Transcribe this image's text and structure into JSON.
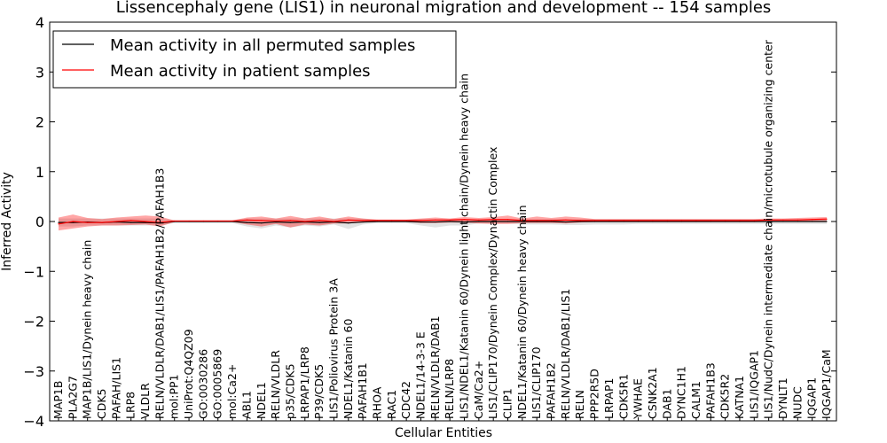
{
  "chart_data": {
    "type": "line",
    "title": "Lissencephaly gene (LIS1) in neuronal migration and development -- 154 samples",
    "xlabel": "Cellular Entities",
    "ylabel": "Inferred Activity",
    "ylim": [
      -4,
      4
    ],
    "yticks": [
      -4,
      -3,
      -2,
      -1,
      0,
      1,
      2,
      3,
      4
    ],
    "ytick_labels": [
      "−4",
      "−3",
      "−2",
      "−1",
      "0",
      "1",
      "2",
      "3",
      "4"
    ],
    "legend_position": "top-left",
    "categories": [
      "MAP1B",
      "PLA2G7",
      "MAP1B/LIS1/Dynein heavy chain",
      "CDK5",
      "PAFAH/LIS1",
      "LRP8",
      "VLDLR",
      "RELN/VLDLR/DAB1/LIS1/PAFAH1B2/PAFAH1B3",
      "mol:PP1",
      "UniProt:Q4QZ09",
      "GO:0030286",
      "GO:0005869",
      "mol:Ca2+",
      "ABL1",
      "NDEL1",
      "RELN/VLDLR",
      "p35/CDK5",
      "LRPAP1/LRP8",
      "P39/CDK5",
      "LIS1/Poliovirus Protein 3A",
      "NDEL1/Katanin 60",
      "PAFAH1B1",
      "RHOA",
      "RAC1",
      "CDC42",
      "NDEL1/14-3-3 E",
      "RELN/VLDLR/DAB1",
      "RELN/LRP8",
      "LIS1/NDEL1/Katanin 60/Dynein light chain/Dynein heavy chain",
      "CaM/Ca2+",
      "LIS1/CLIP170/Dynein Complex/Dynactin Complex",
      "CLIP1",
      "NDEL1/Katanin 60/Dynein heavy chain",
      "LIS1/CLIP170",
      "PAFAH1B2",
      "RELN/VLDLR/DAB1/LIS1",
      "RELN",
      "PPP2R5D",
      "LRPAP1",
      "CDK5R1",
      "YWHAE",
      "CSNK2A1",
      "DAB1",
      "DYNC1H1",
      "CALM1",
      "PAFAH1B3",
      "CDK5R2",
      "KATNA1",
      "LIS1/IQGAP1",
      "LIS1/NudC/Dynein intermediate chain/microtubule organizing center",
      "DYNLT1",
      "NUDC",
      "IQGAP1",
      "IQGAP1/CaM"
    ],
    "series": [
      {
        "name": "Mean activity in all permuted samples",
        "color": "#000000",
        "values": [
          -0.02,
          -0.02,
          -0.01,
          -0.02,
          -0.01,
          -0.02,
          -0.02,
          -0.03,
          0.0,
          0.0,
          0.0,
          0.0,
          0.0,
          -0.02,
          -0.03,
          -0.01,
          -0.02,
          -0.01,
          -0.02,
          -0.01,
          -0.03,
          -0.01,
          0.0,
          0.0,
          0.0,
          -0.01,
          -0.01,
          0.0,
          -0.01,
          0.0,
          0.0,
          0.0,
          0.0,
          0.0,
          0.0,
          -0.01,
          0.0,
          0.0,
          0.0,
          0.0,
          0.0,
          0.0,
          0.0,
          0.0,
          0.0,
          0.0,
          0.0,
          0.0,
          0.0,
          0.0,
          0.0,
          0.0,
          0.0,
          0.0
        ],
        "band_lower": [
          -0.1,
          -0.1,
          -0.08,
          -0.08,
          -0.08,
          -0.08,
          -0.08,
          -0.08,
          -0.03,
          -0.03,
          -0.03,
          -0.03,
          -0.03,
          -0.1,
          -0.14,
          -0.08,
          -0.12,
          -0.08,
          -0.1,
          -0.06,
          -0.15,
          -0.06,
          -0.03,
          -0.03,
          -0.03,
          -0.08,
          -0.12,
          -0.08,
          -0.08,
          -0.04,
          -0.04,
          -0.04,
          -0.06,
          -0.06,
          -0.06,
          -0.07,
          -0.07,
          -0.06,
          -0.06,
          -0.06,
          -0.05,
          -0.05,
          -0.05,
          -0.05,
          -0.05,
          -0.05,
          -0.05,
          -0.05,
          -0.05,
          -0.05,
          -0.05,
          -0.05,
          -0.05,
          -0.05
        ],
        "band_upper": [
          0.06,
          0.06,
          0.06,
          0.06,
          0.06,
          0.06,
          0.06,
          0.06,
          0.03,
          0.03,
          0.03,
          0.03,
          0.03,
          0.06,
          0.06,
          0.06,
          0.06,
          0.06,
          0.06,
          0.06,
          0.06,
          0.06,
          0.03,
          0.03,
          0.03,
          0.05,
          0.05,
          0.05,
          0.05,
          0.04,
          0.04,
          0.04,
          0.05,
          0.05,
          0.05,
          0.05,
          0.05,
          0.05,
          0.05,
          0.05,
          0.05,
          0.05,
          0.05,
          0.05,
          0.05,
          0.05,
          0.05,
          0.05,
          0.05,
          0.05,
          0.05,
          0.05,
          0.05,
          0.05
        ]
      },
      {
        "name": "Mean activity in patient samples",
        "color": "#ff0000",
        "values": [
          -0.05,
          0.0,
          -0.02,
          -0.02,
          0.0,
          0.02,
          0.0,
          -0.02,
          0.01,
          0.01,
          0.01,
          0.01,
          0.01,
          0.03,
          0.02,
          0.01,
          0.02,
          0.0,
          0.02,
          0.0,
          0.03,
          0.02,
          0.02,
          0.02,
          0.02,
          0.02,
          0.03,
          0.03,
          0.04,
          0.03,
          0.04,
          0.04,
          0.02,
          0.02,
          0.02,
          0.03,
          0.02,
          0.02,
          0.02,
          0.02,
          0.02,
          0.02,
          0.02,
          0.02,
          0.02,
          0.02,
          0.02,
          0.02,
          0.02,
          0.03,
          0.03,
          0.03,
          0.04,
          0.05
        ],
        "band_lower": [
          -0.18,
          -0.14,
          -0.1,
          -0.08,
          -0.08,
          -0.07,
          -0.06,
          -0.1,
          -0.01,
          -0.01,
          -0.01,
          -0.01,
          -0.01,
          -0.06,
          -0.1,
          -0.05,
          -0.12,
          -0.06,
          -0.08,
          -0.04,
          -0.04,
          -0.02,
          -0.01,
          -0.01,
          -0.01,
          -0.03,
          -0.03,
          -0.02,
          -0.02,
          -0.04,
          -0.05,
          -0.05,
          -0.03,
          -0.03,
          -0.03,
          -0.04,
          -0.02,
          -0.01,
          -0.01,
          -0.01,
          -0.01,
          -0.01,
          -0.01,
          -0.01,
          -0.01,
          -0.01,
          -0.01,
          -0.01,
          -0.01,
          -0.01,
          -0.01,
          0.0,
          0.0,
          0.0
        ],
        "band_upper": [
          0.08,
          0.14,
          0.07,
          0.05,
          0.08,
          0.1,
          0.12,
          0.1,
          0.02,
          0.02,
          0.02,
          0.02,
          0.02,
          0.08,
          0.1,
          0.06,
          0.11,
          0.06,
          0.1,
          0.05,
          0.1,
          0.06,
          0.04,
          0.04,
          0.04,
          0.06,
          0.08,
          0.06,
          0.09,
          0.07,
          0.09,
          0.12,
          0.06,
          0.1,
          0.07,
          0.1,
          0.08,
          0.05,
          0.05,
          0.05,
          0.05,
          0.05,
          0.05,
          0.05,
          0.05,
          0.05,
          0.05,
          0.05,
          0.05,
          0.06,
          0.06,
          0.07,
          0.08,
          0.09
        ]
      }
    ],
    "legend": [
      {
        "label": "Mean activity in all permuted samples",
        "color": "#000000"
      },
      {
        "label": "Mean activity in patient samples",
        "color": "#ff0000"
      }
    ]
  }
}
